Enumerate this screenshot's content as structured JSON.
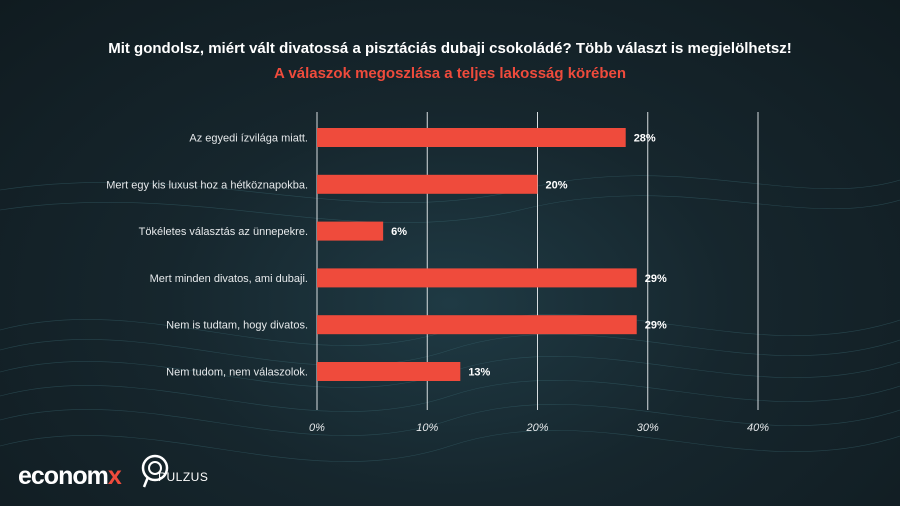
{
  "chart_data": {
    "type": "bar",
    "orientation": "horizontal",
    "title": "Mit gondolsz, miért vált divatossá a pisztáciás dubaji csokoládé? Több választ is megjelölhetsz!",
    "subtitle": "A válaszok megoszlása a teljes lakosság körében",
    "categories": [
      "Az egyedi ízvilága miatt.",
      "Mert egy kis luxust hoz a hétköznapokba.",
      "Tökéletes választás az ünnepekre.",
      "Mert minden divatos, ami dubaji.",
      "Nem is tudtam, hogy divatos.",
      "Nem tudom, nem válaszolok."
    ],
    "values": [
      28,
      20,
      6,
      29,
      29,
      13
    ],
    "value_labels": [
      "28%",
      "20%",
      "6%",
      "29%",
      "29%",
      "13%"
    ],
    "x_ticks": [
      0,
      10,
      20,
      30,
      40
    ],
    "x_tick_labels": [
      "0%",
      "10%",
      "20%",
      "30%",
      "40%"
    ],
    "xlim": [
      0,
      40
    ],
    "grid": true,
    "bar_color": "#ef4b3c",
    "grid_color": "#d8dde0"
  },
  "logos": {
    "economx_main": "econom",
    "economx_accent": "x",
    "pulzus": "PULZUS"
  }
}
